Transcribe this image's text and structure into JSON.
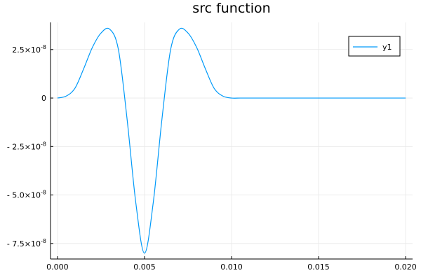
{
  "chart_data": {
    "type": "line",
    "title": "src function",
    "xlabel": "",
    "ylabel": "",
    "xlim": [
      -0.0004,
      0.0204
    ],
    "ylim": [
      -8.3e-08,
      3.9e-08
    ],
    "grid": true,
    "legend_position": "top-right",
    "x_ticks": [
      {
        "value": 0.0,
        "label": "0.000"
      },
      {
        "value": 0.005,
        "label": "0.005"
      },
      {
        "value": 0.01,
        "label": "0.010"
      },
      {
        "value": 0.015,
        "label": "0.015"
      },
      {
        "value": 0.02,
        "label": "0.020"
      }
    ],
    "y_ticks": [
      {
        "value": 2.5e-08,
        "label": "2.5×10",
        "exp": "-8"
      },
      {
        "value": 0,
        "label": "0",
        "exp": ""
      },
      {
        "value": -2.5e-08,
        "label": "- 2.5×10",
        "exp": "-8"
      },
      {
        "value": -5e-08,
        "label": "- 5.0×10",
        "exp": "-8"
      },
      {
        "value": -7.5e-08,
        "label": "- 7.5×10",
        "exp": "-8"
      }
    ],
    "series": [
      {
        "name": "y1",
        "color": "#009af9",
        "x": [
          0.0,
          0.0005,
          0.001,
          0.0015,
          0.002,
          0.0025,
          0.003,
          0.0035,
          0.004,
          0.0045,
          0.005,
          0.0055,
          0.006,
          0.0065,
          0.007,
          0.0075,
          0.008,
          0.0085,
          0.009,
          0.0095,
          0.01,
          0.0105,
          0.011,
          0.012,
          0.014,
          0.016,
          0.018,
          0.02
        ],
        "y": [
          0.0,
          1e-09,
          5e-09,
          1.5e-08,
          2.6e-08,
          3.35e-08,
          3.55e-08,
          2.5e-08,
          -1.1e-08,
          -5.4e-08,
          -8e-08,
          -5.4e-08,
          -1.1e-08,
          2.5e-08,
          3.55e-08,
          3.35e-08,
          2.6e-08,
          1.5e-08,
          5e-09,
          1e-09,
          0.0,
          0.0,
          0.0,
          0.0,
          0.0,
          0.0,
          0.0,
          0.0
        ]
      }
    ]
  }
}
